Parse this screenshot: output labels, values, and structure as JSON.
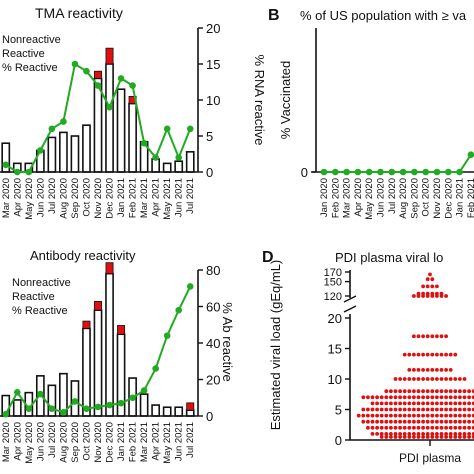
{
  "panels": {
    "b_letter": "B",
    "d_letter": "D"
  },
  "chart_data": [
    {
      "id": "A",
      "type": "bar",
      "title": "TMA reactivity",
      "xlabel": "",
      "ylabel": "",
      "y2label": "% RNA reactive",
      "categories": [
        "Mar 2020",
        "Apr 2020",
        "May 2020",
        "Jun 2020",
        "Jul 2020",
        "Aug 2020",
        "Sep 2020",
        "Oct 2020",
        "Nov 2020",
        "Dec 2020",
        "Jan 2021",
        "Feb 2021",
        "Mar 2021",
        "Apr 2021",
        "May 2021",
        "Jun 2021",
        "Jul 2021"
      ],
      "series": [
        {
          "name": "Nonreactive",
          "kind": "bar",
          "color": "#ffffff",
          "values": [
            40,
            12,
            12,
            30,
            48,
            55,
            50,
            65,
            130,
            150,
            115,
            95,
            42,
            18,
            12,
            15,
            28
          ]
        },
        {
          "name": "Reactive",
          "kind": "bar",
          "color": "#e01010",
          "values": [
            0,
            0,
            0,
            0,
            0,
            0,
            0,
            0,
            10,
            22,
            0,
            10,
            0,
            0,
            0,
            0,
            0
          ]
        },
        {
          "name": "% Reactive",
          "kind": "line",
          "color": "#22aa22",
          "axis": "right",
          "values": [
            1,
            0,
            0,
            3,
            6,
            7,
            15,
            14,
            12,
            9,
            13,
            12,
            4,
            2,
            6,
            2,
            6
          ]
        }
      ],
      "ylim": [
        0,
        200
      ],
      "y2lim": [
        0,
        20
      ],
      "y2ticks": [
        0,
        5,
        10,
        15,
        20
      ],
      "legend": "top-left"
    },
    {
      "id": "B",
      "type": "line",
      "title": "% of US population with ≥ va",
      "xlabel": "",
      "ylabel": "% Vaccinated",
      "categories": [
        "Jan 2020",
        "Feb 2020",
        "Mar 2020",
        "Apr 2020",
        "May 2020",
        "Jun 2020",
        "Jul 2020",
        "Aug 2020",
        "Sep 2020",
        "Oct 2020",
        "Nov 2020",
        "Dec 2020",
        "Jan 2021",
        "Feb 2021"
      ],
      "series": [
        {
          "name": "",
          "color": "#22aa22",
          "values": [
            0,
            0,
            0,
            0,
            0,
            0,
            0,
            0,
            0,
            0,
            0,
            0,
            0,
            12
          ]
        }
      ],
      "yticks": [
        0
      ],
      "ylim": [
        0,
        100
      ]
    },
    {
      "id": "C",
      "type": "bar",
      "title": "Antibody reactivity",
      "xlabel": "",
      "ylabel": "",
      "y2label": "% Ab reactive",
      "categories": [
        "Mar 2020",
        "Apr 2020",
        "May 2020",
        "Jun 2020",
        "Jul 2020",
        "Aug 2020",
        "Sep 2020",
        "Oct 2020",
        "Nov 2020",
        "Dec 2020",
        "Jan 2021",
        "Feb 2021",
        "Mar 2021",
        "Apr 2021",
        "May 2021",
        "Jun 2021",
        "Jul 2021"
      ],
      "series": [
        {
          "name": "Nonreactive",
          "kind": "bar",
          "color": "#ffffff",
          "values": [
            28,
            22,
            32,
            55,
            42,
            58,
            48,
            120,
            145,
            195,
            112,
            52,
            30,
            15,
            12,
            12,
            8
          ]
        },
        {
          "name": "Reactive",
          "kind": "bar",
          "color": "#e01010",
          "values": [
            0,
            0,
            0,
            0,
            0,
            0,
            0,
            10,
            12,
            15,
            12,
            0,
            0,
            0,
            0,
            0,
            10
          ]
        },
        {
          "name": "% Reactive",
          "kind": "line",
          "color": "#22aa22",
          "axis": "right",
          "values": [
            1,
            13,
            4,
            12,
            4,
            2,
            8,
            4,
            5,
            6,
            7,
            10,
            14,
            26,
            44,
            58,
            71
          ]
        }
      ],
      "ylim": [
        0,
        200
      ],
      "y2lim": [
        0,
        80
      ],
      "y2ticks": [
        0,
        20,
        40,
        60,
        80
      ],
      "legend": "top-left"
    },
    {
      "id": "D",
      "type": "scatter",
      "title": "PDI plasma viral lo",
      "xlabel": "PDI plasma",
      "ylabel": "Estimated viral load (gEq/mL)",
      "yticks_upper": [
        120,
        150,
        170
      ],
      "yticks_lower": [
        0,
        5,
        10,
        15,
        20
      ],
      "series": [
        {
          "name": "",
          "color": "#e01010",
          "rows": [
            {
              "y": 165,
              "n": 1
            },
            {
              "y": 155,
              "n": 2
            },
            {
              "y": 140,
              "n": 4
            },
            {
              "y": 125,
              "n": 6
            },
            {
              "y": 120,
              "n": 8
            },
            {
              "y": 17,
              "n": 8
            },
            {
              "y": 14,
              "n": 12
            },
            {
              "y": 11.5,
              "n": 10
            },
            {
              "y": 10,
              "n": 16
            },
            {
              "y": 8,
              "n": 20
            },
            {
              "y": 7,
              "n": 30
            },
            {
              "y": 6,
              "n": 26
            },
            {
              "y": 5,
              "n": 30
            },
            {
              "y": 4,
              "n": 32
            },
            {
              "y": 3,
              "n": 30
            },
            {
              "y": 2,
              "n": 28
            },
            {
              "y": 1,
              "n": 26
            },
            {
              "y": 0.5,
              "n": 22
            }
          ]
        }
      ]
    }
  ]
}
